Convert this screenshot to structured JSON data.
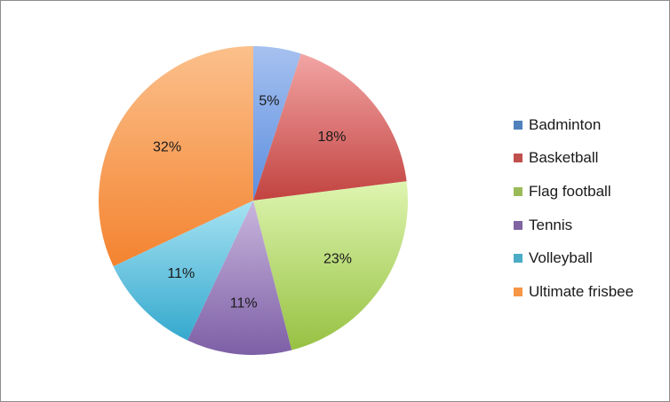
{
  "chart_data": {
    "type": "pie",
    "title": "",
    "categories": [
      "Badminton",
      "Basketball",
      "Flag football",
      "Tennis",
      "Volleyball",
      "Ultimate frisbee"
    ],
    "values": [
      5,
      18,
      23,
      11,
      11,
      32
    ],
    "labels": [
      "5%",
      "18%",
      "23%",
      "11%",
      "11%",
      "32%"
    ],
    "colors": [
      {
        "light": "#a6c1ef",
        "dark": "#5c8ee0",
        "swatch": "#4f81bd"
      },
      {
        "light": "#f2a5a4",
        "dark": "#c24340",
        "swatch": "#c0504d"
      },
      {
        "light": "#def5b0",
        "dark": "#97c142",
        "swatch": "#9bbb59"
      },
      {
        "light": "#c9b6dd",
        "dark": "#7d5fa6",
        "swatch": "#8064a2"
      },
      {
        "light": "#a7e2f2",
        "dark": "#35a9ce",
        "swatch": "#4bacc6"
      },
      {
        "light": "#fbc08b",
        "dark": "#f48330",
        "swatch": "#f79646"
      }
    ],
    "legend_position": "right"
  }
}
